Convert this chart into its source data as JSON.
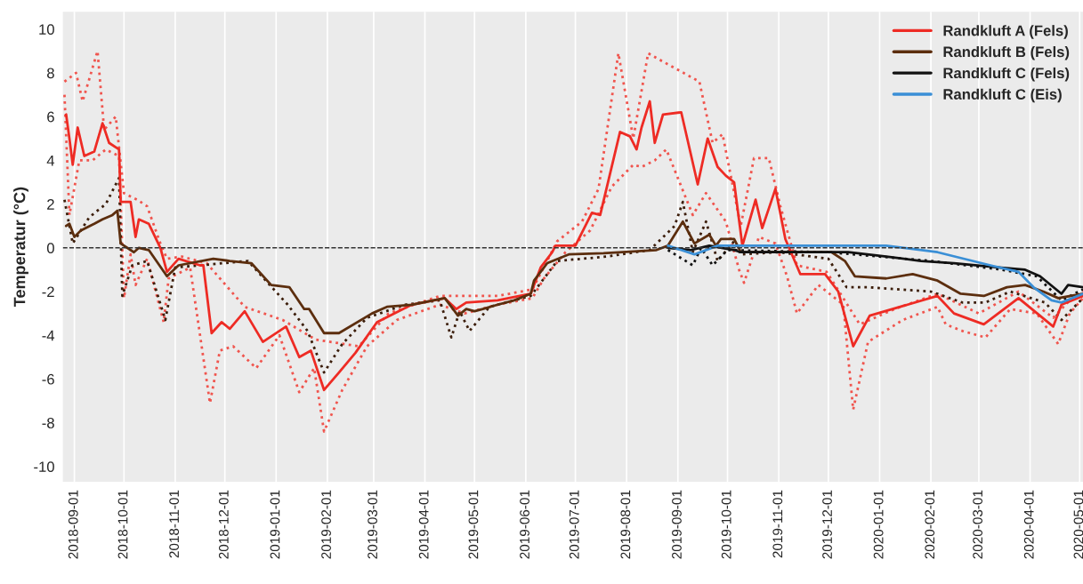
{
  "chart_data": {
    "type": "line",
    "ylabel": "Temperatur (°C)",
    "xlim": [
      "2018-08-25",
      "2020-05-03"
    ],
    "ylim": [
      -10.7,
      10.8
    ],
    "xticks": [
      "2018-09-01",
      "2018-10-01",
      "2018-11-01",
      "2018-12-01",
      "2019-01-01",
      "2019-02-01",
      "2019-03-01",
      "2019-04-01",
      "2019-05-01",
      "2019-06-01",
      "2019-07-01",
      "2019-08-01",
      "2019-09-01",
      "2019-10-01",
      "2019-11-01",
      "2019-12-01",
      "2020-01-01",
      "2020-02-01",
      "2020-03-01",
      "2020-04-01",
      "2020-05-01"
    ],
    "yticks": [
      -10,
      -8,
      -6,
      -4,
      -2,
      0,
      2,
      4,
      6,
      8,
      10
    ],
    "grid": "x",
    "legend": "top right",
    "ref_lines": [
      {
        "axis": "y",
        "value": 0,
        "color": "#333333",
        "line_style": "dashed"
      }
    ],
    "series": [
      {
        "color": "#f0554e",
        "line_style": "dotted",
        "x": [
          "2018-08-26",
          "2018-09-02",
          "2018-09-06",
          "2018-09-15",
          "2018-09-19",
          "2018-09-26",
          "2018-10-01",
          "2018-10-09",
          "2018-10-15",
          "2018-10-23",
          "2018-10-27",
          "2018-11-05",
          "2018-11-20",
          "2018-12-13",
          "2019-01-05",
          "2019-01-25",
          "2019-02-20",
          "2019-03-10",
          "2019-04-10",
          "2019-05-15",
          "2019-06-05",
          "2019-06-20",
          "2019-07-05",
          "2019-07-15",
          "2019-07-27",
          "2019-08-05",
          "2019-08-14",
          "2019-08-21",
          "2019-09-02",
          "2019-09-14",
          "2019-09-22",
          "2019-09-28",
          "2019-10-09",
          "2019-10-17",
          "2019-10-26",
          "2019-11-02",
          "2019-11-12",
          "2019-11-30",
          "2019-12-20",
          "2020-01-10",
          "2020-02-05",
          "2020-03-01",
          "2020-03-25",
          "2020-04-15",
          "2020-04-25",
          "2020-05-03"
        ],
        "values": [
          7.6,
          8.0,
          6.7,
          9.0,
          5.4,
          6.0,
          2.5,
          2.2,
          1.9,
          0.2,
          -0.5,
          -0.4,
          -0.7,
          -2.7,
          -3.3,
          -4.2,
          -4.5,
          -3.0,
          -2.2,
          -2.2,
          -1.9,
          0.3,
          1.2,
          2.7,
          8.9,
          5.0,
          8.9,
          8.6,
          8.1,
          7.6,
          4.8,
          5.2,
          1.0,
          4.1,
          4.1,
          1.9,
          -0.8,
          -1.1,
          -3.5,
          -2.8,
          -2.1,
          -3.0,
          -2.0,
          -3.2,
          -2.4,
          -2.0
        ]
      },
      {
        "color": "#f0554e",
        "line_style": "dotted",
        "x": [
          "2018-08-26",
          "2018-08-29",
          "2018-09-04",
          "2018-09-12",
          "2018-09-20",
          "2018-09-28",
          "2018-10-01",
          "2018-10-05",
          "2018-10-08",
          "2018-10-15",
          "2018-10-25",
          "2018-10-28",
          "2018-11-10",
          "2018-11-22",
          "2018-11-28",
          "2018-12-06",
          "2018-12-20",
          "2019-01-03",
          "2019-01-15",
          "2019-01-24",
          "2019-01-30",
          "2019-02-10",
          "2019-02-25",
          "2019-03-15",
          "2019-04-10",
          "2019-04-25",
          "2019-05-15",
          "2019-06-05",
          "2019-06-12",
          "2019-06-25",
          "2019-07-10",
          "2019-07-23",
          "2019-08-05",
          "2019-08-10",
          "2019-08-18",
          "2019-08-25",
          "2019-09-10",
          "2019-09-18",
          "2019-09-30",
          "2019-10-08",
          "2019-10-11",
          "2019-10-20",
          "2019-10-30",
          "2019-11-06",
          "2019-11-12",
          "2019-11-25",
          "2019-12-10",
          "2019-12-16",
          "2019-12-25",
          "2020-01-15",
          "2020-02-05",
          "2020-02-10",
          "2020-02-20",
          "2020-03-05",
          "2020-03-20",
          "2020-04-05",
          "2020-04-18",
          "2020-04-25",
          "2020-05-03"
        ],
        "values": [
          7.0,
          1.5,
          4.0,
          4.0,
          4.5,
          4.2,
          -2.3,
          -0.3,
          -1.7,
          -0.5,
          -3.4,
          -1.4,
          -0.9,
          -7.1,
          -4.7,
          -4.5,
          -5.5,
          -4.0,
          -6.6,
          -5.5,
          -8.4,
          -6.5,
          -4.5,
          -3.3,
          -2.6,
          -3.0,
          -2.6,
          -2.3,
          -1.4,
          -0.2,
          0.8,
          2.8,
          3.8,
          3.7,
          4.0,
          4.5,
          1.5,
          2.5,
          1.2,
          -1.0,
          -1.6,
          0.5,
          0.2,
          -1.3,
          -3.0,
          -1.7,
          -2.6,
          -7.4,
          -4.3,
          -3.3,
          -2.7,
          -3.5,
          -3.8,
          -4.1,
          -2.8,
          -3.0,
          -4.4,
          -3.0,
          -2.3
        ]
      },
      {
        "color": "#3b1d0a",
        "line_style": "dotted",
        "x": [
          "2018-08-26",
          "2018-08-31",
          "2018-09-10",
          "2018-09-20",
          "2018-09-28",
          "2018-09-30",
          "2018-10-06",
          "2018-10-15",
          "2018-10-26",
          "2018-11-01",
          "2018-12-15",
          "2019-01-08",
          "2019-01-20",
          "2019-01-30",
          "2019-02-10",
          "2019-02-25",
          "2019-03-20",
          "2019-04-10",
          "2019-04-17",
          "2019-04-22",
          "2019-04-28",
          "2019-05-10",
          "2019-06-04",
          "2019-06-20",
          "2019-07-20",
          "2019-08-15",
          "2019-08-30",
          "2019-09-04",
          "2019-09-10",
          "2019-09-18",
          "2019-09-25",
          "2019-10-05",
          "2019-10-09",
          "2019-11-01",
          "2019-12-01",
          "2019-12-12",
          "2019-12-25",
          "2020-02-01",
          "2020-02-20",
          "2020-03-05",
          "2020-03-20",
          "2020-04-10",
          "2020-04-20",
          "2020-05-03"
        ],
        "values": [
          2.2,
          0.2,
          1.4,
          2.0,
          3.2,
          -2.2,
          -0.8,
          -0.6,
          -3.3,
          -0.9,
          -0.6,
          -2.6,
          -3.8,
          -5.7,
          -4.4,
          -3.2,
          -2.6,
          -2.4,
          -4.1,
          -2.9,
          -3.8,
          -2.7,
          -2.2,
          -0.6,
          -0.4,
          -0.1,
          1.0,
          2.1,
          -0.2,
          1.2,
          -0.6,
          0.3,
          -0.3,
          -0.2,
          -0.5,
          -1.8,
          -1.8,
          -2.0,
          -2.5,
          -2.5,
          -2.0,
          -2.5,
          -3.3,
          -2.3
        ]
      },
      {
        "color": "#111111",
        "line_style": "dotted",
        "x": [
          "2019-08-26",
          "2019-09-10",
          "2019-09-15",
          "2019-09-22",
          "2019-10-01",
          "2019-12-01",
          "2020-02-01",
          "2020-03-15",
          "2020-04-05",
          "2020-04-20",
          "2020-05-03"
        ],
        "values": [
          -0.1,
          -0.8,
          0.0,
          -0.8,
          -0.1,
          -0.2,
          -0.6,
          -1.0,
          -1.3,
          -2.4,
          -1.9
        ]
      },
      {
        "name": "Randkluft A (Fels)",
        "color": "#ee2b24",
        "line_style": "solid",
        "x": [
          "2018-08-27",
          "2018-08-29",
          "2018-08-31",
          "2018-09-03",
          "2018-09-07",
          "2018-09-13",
          "2018-09-18",
          "2018-09-22",
          "2018-09-28",
          "2018-09-29",
          "2018-10-05",
          "2018-10-08",
          "2018-10-10",
          "2018-10-16",
          "2018-10-23",
          "2018-10-27",
          "2018-11-03",
          "2018-11-16",
          "2018-11-18",
          "2018-11-23",
          "2018-11-29",
          "2018-12-04",
          "2018-12-13",
          "2018-12-24",
          "2019-01-07",
          "2019-01-15",
          "2019-01-22",
          "2019-01-30",
          "2019-02-08",
          "2019-02-18",
          "2019-03-03",
          "2019-03-24",
          "2019-04-13",
          "2019-04-20",
          "2019-04-26",
          "2019-05-15",
          "2019-06-04",
          "2019-06-10",
          "2019-06-17",
          "2019-06-19",
          "2019-07-01",
          "2019-07-11",
          "2019-07-16",
          "2019-07-28",
          "2019-08-03",
          "2019-08-07",
          "2019-08-10",
          "2019-08-15",
          "2019-08-18",
          "2019-08-23",
          "2019-09-03",
          "2019-09-13",
          "2019-09-19",
          "2019-09-25",
          "2019-09-30",
          "2019-10-05",
          "2019-10-10",
          "2019-10-18",
          "2019-10-22",
          "2019-10-30",
          "2019-11-05",
          "2019-11-14",
          "2019-11-29",
          "2019-12-07",
          "2019-12-16",
          "2019-12-26",
          "2020-02-05",
          "2020-02-15",
          "2020-03-04",
          "2020-03-25",
          "2020-04-15",
          "2020-04-20",
          "2020-05-03"
        ],
        "values": [
          6.1,
          5.0,
          3.8,
          5.5,
          4.2,
          4.4,
          5.7,
          4.8,
          4.5,
          2.1,
          2.1,
          0.5,
          1.3,
          1.1,
          0.0,
          -1.1,
          -0.5,
          -0.8,
          -0.8,
          -3.9,
          -3.4,
          -3.7,
          -2.9,
          -4.3,
          -3.6,
          -5.0,
          -4.7,
          -6.5,
          -5.7,
          -4.8,
          -3.4,
          -2.6,
          -2.3,
          -2.8,
          -2.5,
          -2.4,
          -2.1,
          -0.9,
          -0.2,
          0.1,
          0.1,
          1.6,
          1.5,
          5.3,
          5.1,
          4.5,
          5.5,
          6.7,
          4.8,
          6.1,
          6.2,
          2.9,
          5.0,
          3.7,
          3.3,
          3.0,
          0.1,
          2.2,
          0.9,
          2.7,
          0.4,
          -1.2,
          -1.2,
          -2.0,
          -4.5,
          -3.1,
          -2.2,
          -3.0,
          -3.5,
          -2.3,
          -3.6,
          -2.6,
          -2.2
        ]
      },
      {
        "name": "Randkluft B (Fels)",
        "color": "#5c2e0e",
        "line_style": "solid",
        "x": [
          "2018-08-27",
          "2018-08-29",
          "2018-09-01",
          "2018-09-05",
          "2018-09-13",
          "2018-09-18",
          "2018-09-24",
          "2018-09-27",
          "2018-09-29",
          "2018-10-07",
          "2018-10-10",
          "2018-10-16",
          "2018-10-27",
          "2018-11-03",
          "2018-11-24",
          "2018-12-04",
          "2018-12-17",
          "2018-12-29",
          "2019-01-09",
          "2019-01-18",
          "2019-01-21",
          "2019-01-30",
          "2019-02-08",
          "2019-02-28",
          "2019-03-09",
          "2019-03-24",
          "2019-04-13",
          "2019-04-21",
          "2019-04-26",
          "2019-05-01",
          "2019-05-06",
          "2019-05-15",
          "2019-05-25",
          "2019-06-04",
          "2019-06-06",
          "2019-06-14",
          "2019-06-27",
          "2019-07-18",
          "2019-08-19",
          "2019-08-26",
          "2019-09-04",
          "2019-09-11",
          "2019-09-20",
          "2019-09-24",
          "2019-09-27",
          "2019-10-05",
          "2019-10-09",
          "2019-12-03",
          "2019-12-11",
          "2019-12-17",
          "2020-01-05",
          "2020-01-21",
          "2020-02-05",
          "2020-02-19",
          "2020-03-04",
          "2020-03-18",
          "2020-03-29",
          "2020-04-09",
          "2020-04-18",
          "2020-05-03"
        ],
        "values": [
          1.0,
          1.1,
          0.5,
          0.8,
          1.1,
          1.3,
          1.5,
          1.7,
          0.2,
          -0.2,
          0.0,
          -0.1,
          -1.3,
          -0.8,
          -0.5,
          -0.6,
          -0.7,
          -1.7,
          -1.8,
          -2.8,
          -2.8,
          -3.9,
          -3.9,
          -3.0,
          -2.7,
          -2.6,
          -2.3,
          -3.1,
          -2.8,
          -2.9,
          -2.8,
          -2.6,
          -2.4,
          -2.1,
          -1.5,
          -0.7,
          -0.3,
          -0.25,
          -0.1,
          0.1,
          1.2,
          0.2,
          0.6,
          0.1,
          0.4,
          0.4,
          -0.2,
          -0.2,
          -0.6,
          -1.3,
          -1.4,
          -1.2,
          -1.5,
          -2.1,
          -2.2,
          -1.8,
          -1.7,
          -2.0,
          -2.3,
          -2.1
        ]
      },
      {
        "name": "Randkluft C (Fels)",
        "color": "#111111",
        "line_style": "solid",
        "x": [
          "2019-08-26",
          "2019-09-09",
          "2019-09-20",
          "2019-10-05",
          "2019-10-09",
          "2019-12-13",
          "2020-01-05",
          "2020-01-26",
          "2020-02-15",
          "2020-03-13",
          "2020-03-29",
          "2020-04-07",
          "2020-04-20",
          "2020-04-24",
          "2020-05-03"
        ],
        "values": [
          0.0,
          -0.1,
          0.1,
          -0.1,
          -0.2,
          -0.2,
          -0.4,
          -0.6,
          -0.7,
          -0.9,
          -1.0,
          -1.3,
          -2.1,
          -1.7,
          -1.8
        ]
      },
      {
        "name": "Randkluft C (Eis)",
        "color": "#3a8fd6",
        "line_style": "solid",
        "x": [
          "2019-08-26",
          "2019-09-11",
          "2019-09-25",
          "2020-01-05",
          "2020-02-05",
          "2020-03-08",
          "2020-03-25",
          "2020-04-03",
          "2020-04-14",
          "2020-04-20",
          "2020-05-03"
        ],
        "values": [
          0.1,
          -0.3,
          0.1,
          0.1,
          -0.2,
          -0.8,
          -1.1,
          -1.8,
          -2.4,
          -2.5,
          -2.1
        ]
      }
    ]
  }
}
